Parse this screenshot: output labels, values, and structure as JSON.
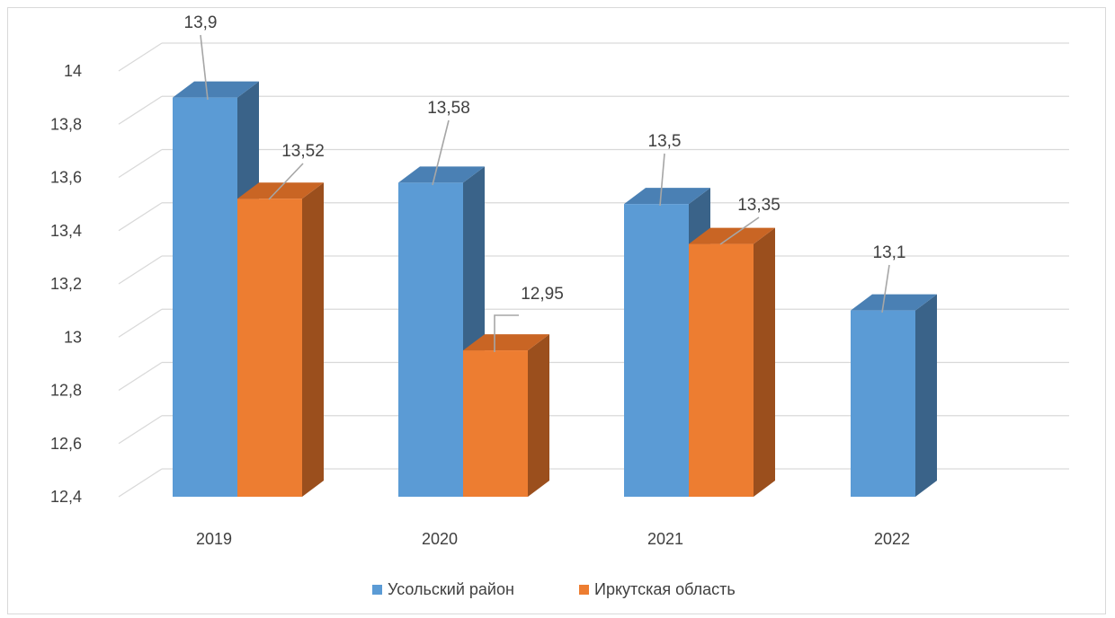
{
  "chart_data": {
    "type": "bar",
    "style": "3d-clustered-column",
    "title": "",
    "xlabel": "",
    "ylabel": "",
    "categories": [
      "2019",
      "2020",
      "2021",
      "2022"
    ],
    "series": [
      {
        "name": "Усольский район",
        "color": "#5b9bd5",
        "side_color": "#3a6389",
        "top_color": "#4a80b4",
        "values": [
          13.9,
          13.58,
          13.5,
          13.1
        ],
        "labels": [
          "13,9",
          "13,58",
          "13,5",
          "13,1"
        ]
      },
      {
        "name": "Иркутская область",
        "color": "#ed7d31",
        "side_color": "#9b4f1d",
        "top_color": "#c96524",
        "values": [
          13.52,
          12.95,
          13.35,
          null
        ],
        "labels": [
          "13,52",
          "12,95",
          "13,35",
          null
        ]
      }
    ],
    "ylim": [
      12.4,
      14.0
    ],
    "yticks": [
      "12,4",
      "12,6",
      "12,8",
      "13",
      "13,2",
      "13,4",
      "13,6",
      "13,8",
      "14"
    ],
    "grid": true,
    "legend_position": "bottom"
  }
}
